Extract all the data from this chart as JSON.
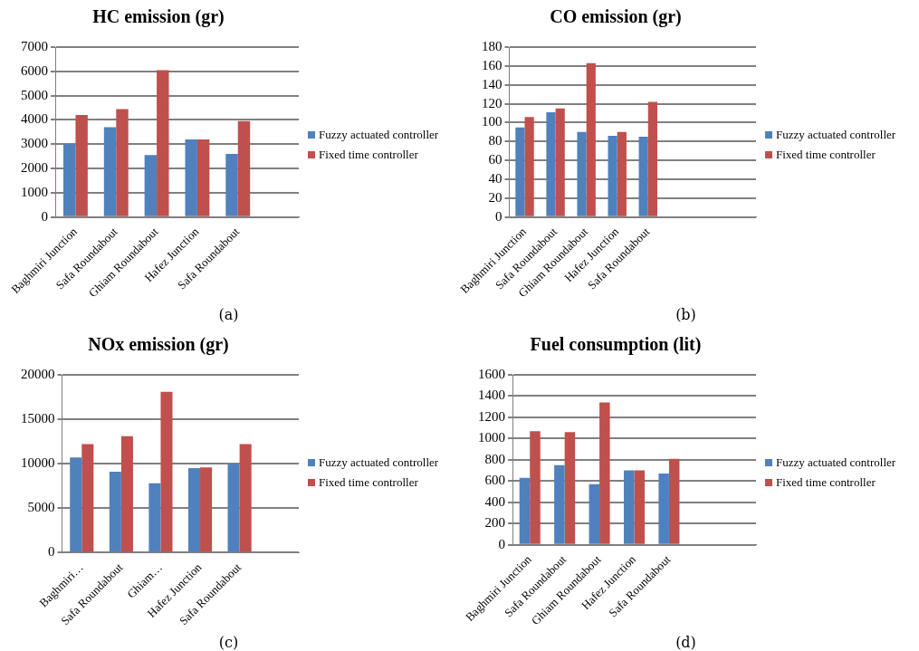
{
  "chart_data": [
    {
      "type": "bar",
      "title": "HC emission (gr)",
      "categories": [
        "Baghmiri Junction",
        "Safa Roundabout",
        "Ghiam Roundabout",
        "Hafez Junction",
        "Safa Roundabout",
        null
      ],
      "series": [
        {
          "name": "Fuzzy actuated controller",
          "color": "#4f81bd",
          "values": [
            3000,
            3700,
            2550,
            3200,
            2600,
            null
          ]
        },
        {
          "name": "Fixed time controller",
          "color": "#c0504d",
          "values": [
            4200,
            4450,
            6050,
            3200,
            3950,
            null
          ]
        }
      ],
      "ylim": [
        0,
        7000
      ],
      "yticks": [
        0,
        1000,
        2000,
        3000,
        4000,
        5000,
        6000,
        7000
      ],
      "grid": "y",
      "legend": "right",
      "annotations": [
        "(a)"
      ]
    },
    {
      "type": "bar",
      "title": "CO emission (gr)",
      "categories": [
        "Baghmiri Junction",
        "Safa Roundabout",
        "Ghiam Roundabout",
        "Hafez Junction",
        "Safa Roundabout",
        null,
        null,
        null
      ],
      "series": [
        {
          "name": "Fuzzy actuated controller",
          "color": "#4f81bd",
          "values": [
            95,
            111,
            90,
            86,
            85,
            null,
            null,
            null
          ]
        },
        {
          "name": "Fixed time controller",
          "color": "#c0504d",
          "values": [
            106,
            115,
            163,
            90,
            122,
            null,
            null,
            null
          ]
        }
      ],
      "ylim": [
        0,
        180
      ],
      "yticks": [
        0,
        20,
        40,
        60,
        80,
        100,
        120,
        140,
        160,
        180
      ],
      "grid": "y",
      "legend": "right",
      "annotations": [
        "(b)"
      ]
    },
    {
      "type": "bar",
      "title": "NOx emission (gr)",
      "categories": [
        "Baghmiri…",
        "Safa Roundabout",
        "Ghiam…",
        "Hafez Junction",
        "Safa Roundabout",
        null
      ],
      "series": [
        {
          "name": "Fuzzy actuated controller",
          "color": "#4f81bd",
          "values": [
            10700,
            9100,
            7800,
            9500,
            10000,
            null
          ]
        },
        {
          "name": "Fixed time controller",
          "color": "#c0504d",
          "values": [
            12200,
            13100,
            18100,
            9600,
            12200,
            null
          ]
        }
      ],
      "ylim": [
        0,
        20000
      ],
      "yticks": [
        0,
        5000,
        10000,
        15000,
        20000
      ],
      "grid": "y",
      "legend": "right",
      "annotations": [
        "(c)"
      ]
    },
    {
      "type": "bar",
      "title": "Fuel consumption (lit)",
      "categories": [
        "Baghmiri Junction",
        "Safa Roundabout",
        "Ghiam Roundabout",
        "Hafez Junction",
        "Safa Roundabout",
        null,
        null
      ],
      "series": [
        {
          "name": "Fuzzy actuated controller",
          "color": "#4f81bd",
          "values": [
            630,
            750,
            570,
            700,
            670,
            null,
            null
          ]
        },
        {
          "name": "Fixed time controller",
          "color": "#c0504d",
          "values": [
            1070,
            1060,
            1340,
            700,
            810,
            null,
            null
          ]
        }
      ],
      "ylim": [
        0,
        1600
      ],
      "yticks": [
        0,
        200,
        400,
        600,
        800,
        1000,
        1200,
        1400,
        1600
      ],
      "grid": "y",
      "legend": "right",
      "annotations": [
        "(d)"
      ]
    }
  ]
}
